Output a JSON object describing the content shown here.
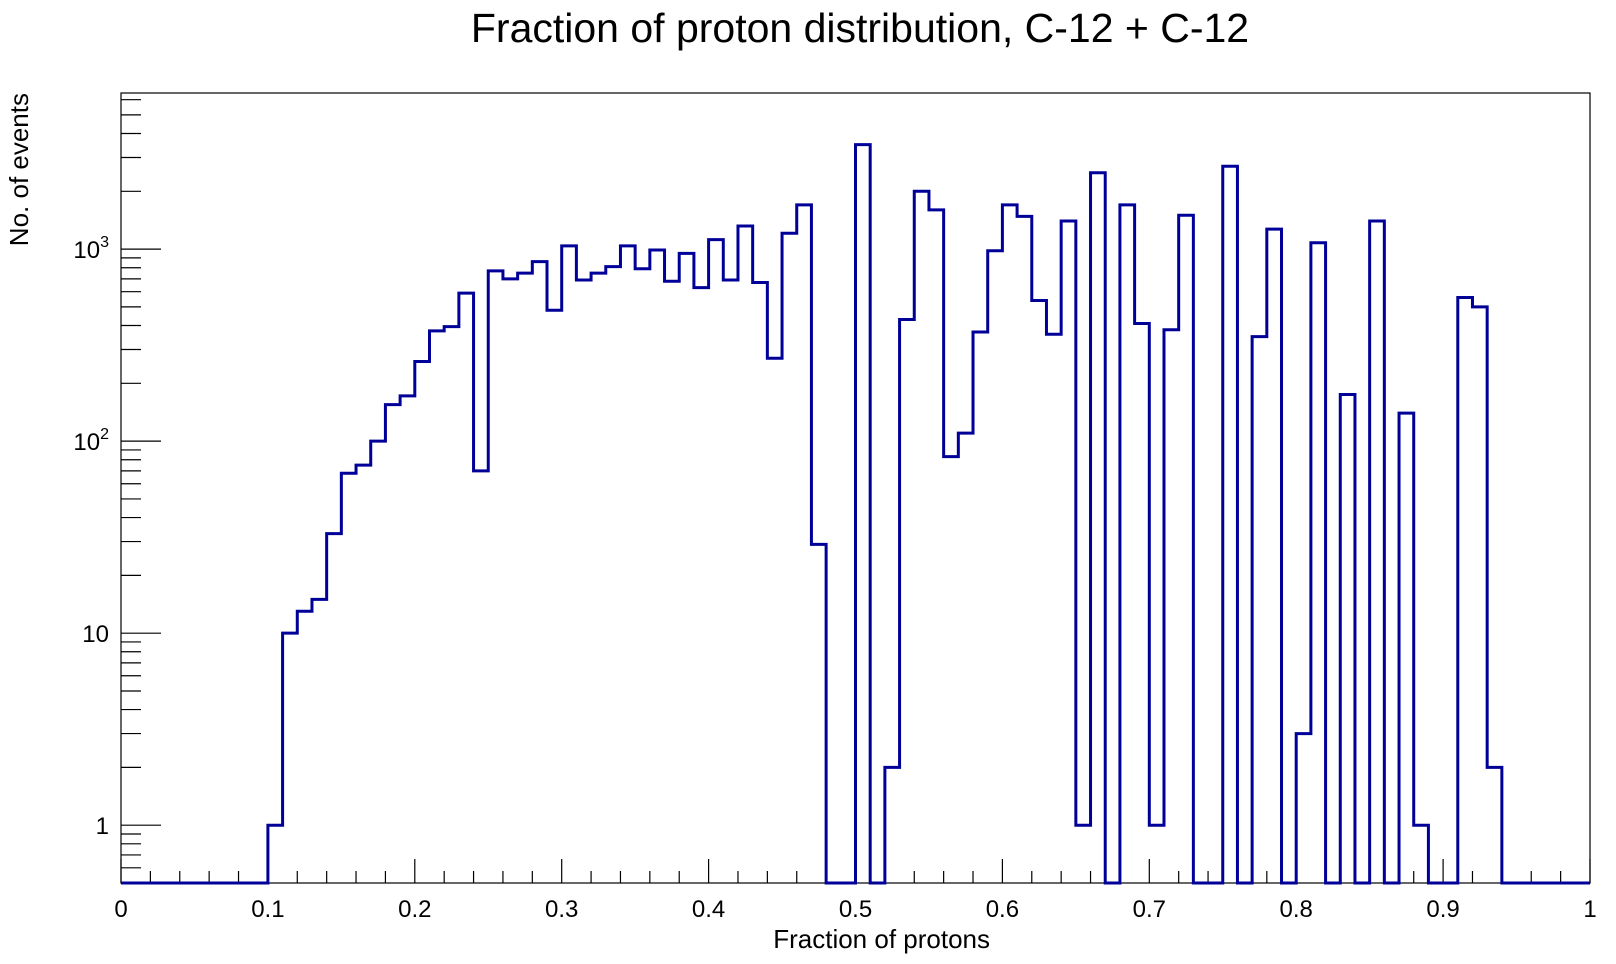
{
  "chart_data": {
    "type": "bar",
    "style": "step-histogram",
    "title": "Fraction of proton distribution, C-12 + C-12",
    "xlabel": "Fraction of protons",
    "ylabel": "No. of events",
    "xlim": [
      0,
      1
    ],
    "ylim": [
      0.5,
      6500
    ],
    "yscale": "log",
    "grid": false,
    "line_color": "#000099",
    "bin_width": 0.01,
    "x_tick_labels": [
      "0",
      "0.1",
      "0.2",
      "0.3",
      "0.4",
      "0.5",
      "0.6",
      "0.7",
      "0.8",
      "0.9",
      "1"
    ],
    "y_tick_labels": [
      {
        "value": 1,
        "base": "1",
        "exp": ""
      },
      {
        "value": 10,
        "base": "10",
        "exp": ""
      },
      {
        "value": 100,
        "base": "10",
        "exp": "2"
      },
      {
        "value": 1000,
        "base": "10",
        "exp": "3"
      }
    ],
    "values": [
      0,
      0,
      0,
      0,
      0,
      0,
      0,
      0,
      0,
      0,
      1,
      10,
      13,
      15,
      33,
      68,
      75,
      100,
      155,
      172,
      260,
      375,
      395,
      590,
      70,
      770,
      700,
      750,
      860,
      480,
      1040,
      690,
      750,
      810,
      1040,
      790,
      990,
      680,
      950,
      630,
      1120,
      690,
      1320,
      670,
      270,
      1210,
      1700,
      29,
      0,
      0,
      3500,
      0,
      2,
      430,
      2000,
      1600,
      83,
      110,
      370,
      980,
      1700,
      1480,
      540,
      360,
      1400,
      1,
      2500,
      0,
      1700,
      410,
      1,
      380,
      1500,
      0,
      0,
      2700,
      0,
      350,
      1270,
      0,
      3,
      1080,
      0,
      175,
      0,
      1400,
      0,
      140,
      1,
      0,
      0,
      560,
      500,
      2,
      0,
      0,
      0,
      0,
      0,
      0
    ]
  }
}
